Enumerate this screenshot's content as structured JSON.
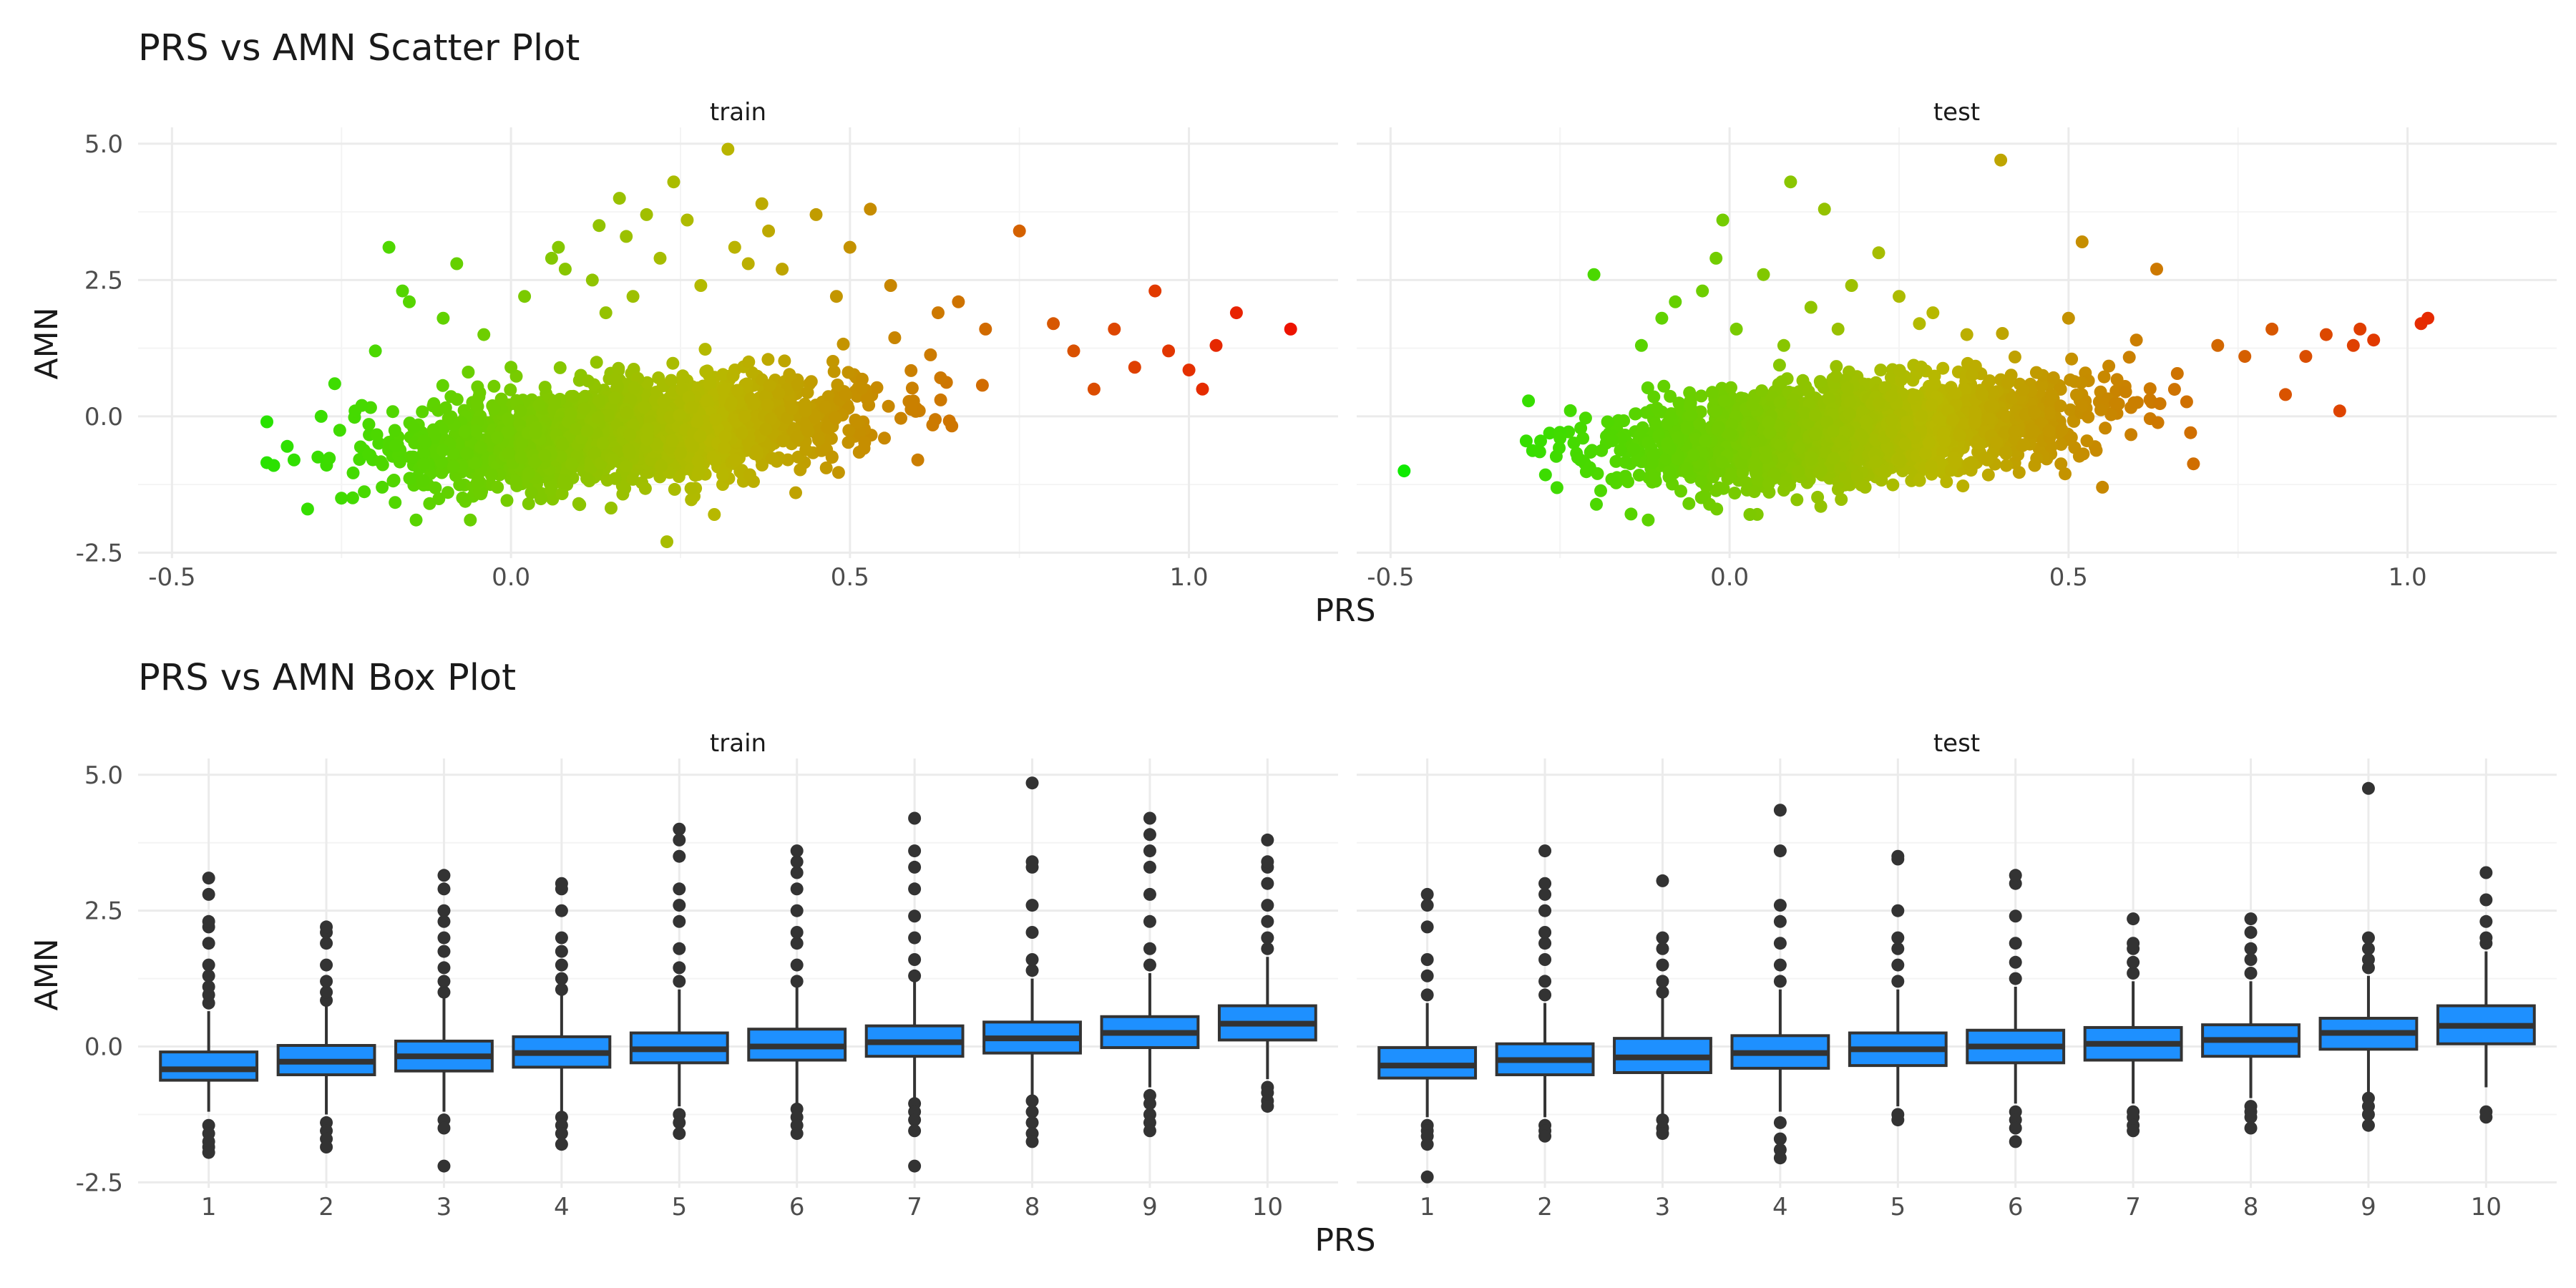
{
  "chart_data": [
    {
      "type": "scatter",
      "title": "PRS vs AMN Scatter Plot",
      "xlabel": "PRS",
      "ylabel": "AMN",
      "facets": [
        "train",
        "test"
      ],
      "xlim": [
        -0.55,
        1.22
      ],
      "ylim": [
        -2.6,
        5.3
      ],
      "x_ticks": [
        -0.5,
        0.0,
        0.5,
        1.0
      ],
      "x_tick_labels": [
        "-0.5",
        "0.0",
        "0.5",
        "1.0"
      ],
      "y_ticks": [
        -2.5,
        0.0,
        2.5,
        5.0
      ],
      "y_tick_labels": [
        "-2.5",
        "0.0",
        "2.5",
        "5.0"
      ],
      "grid": true,
      "color_scale": {
        "low": "#00ee00",
        "mid": "#b8b800",
        "high": "#ee1100",
        "encodes": "PRS"
      },
      "series": [
        {
          "facet": "train",
          "points": [
            [
              -0.36,
              -0.1
            ],
            [
              -0.36,
              -0.85
            ],
            [
              -0.35,
              -0.9
            ],
            [
              -0.33,
              -0.55
            ],
            [
              -0.32,
              -0.8
            ],
            [
              -0.3,
              -1.7
            ],
            [
              -0.28,
              0.0
            ],
            [
              -0.26,
              0.6
            ],
            [
              -0.25,
              -1.5
            ],
            [
              -0.23,
              0.1
            ],
            [
              -0.22,
              0.2
            ],
            [
              -0.2,
              1.2
            ],
            [
              -0.19,
              -1.3
            ],
            [
              -0.18,
              3.1
            ],
            [
              -0.16,
              2.3
            ],
            [
              -0.15,
              2.1
            ],
            [
              -0.14,
              -1.9
            ],
            [
              -0.12,
              -1.6
            ],
            [
              -0.1,
              1.8
            ],
            [
              -0.08,
              2.8
            ],
            [
              -0.06,
              -1.9
            ],
            [
              -0.04,
              1.5
            ],
            [
              -0.02,
              -1.3
            ],
            [
              0.0,
              0.9
            ],
            [
              0.02,
              2.2
            ],
            [
              0.03,
              -1.4
            ],
            [
              0.06,
              2.9
            ],
            [
              0.07,
              3.1
            ],
            [
              0.08,
              2.7
            ],
            [
              0.1,
              -1.6
            ],
            [
              0.12,
              2.5
            ],
            [
              0.13,
              3.5
            ],
            [
              0.14,
              1.9
            ],
            [
              0.16,
              4.0
            ],
            [
              0.17,
              3.3
            ],
            [
              0.18,
              2.2
            ],
            [
              0.2,
              3.7
            ],
            [
              0.22,
              2.9
            ],
            [
              0.23,
              -2.3
            ],
            [
              0.24,
              4.3
            ],
            [
              0.26,
              3.6
            ],
            [
              0.28,
              2.4
            ],
            [
              0.3,
              -1.8
            ],
            [
              0.32,
              4.9
            ],
            [
              0.33,
              3.1
            ],
            [
              0.35,
              2.8
            ],
            [
              0.37,
              3.9
            ],
            [
              0.38,
              3.4
            ],
            [
              0.4,
              2.7
            ],
            [
              0.42,
              -1.4
            ],
            [
              0.45,
              3.7
            ],
            [
              0.48,
              2.2
            ],
            [
              0.5,
              3.1
            ],
            [
              0.53,
              3.8
            ],
            [
              0.56,
              2.4
            ],
            [
              0.6,
              -0.8
            ],
            [
              0.63,
              1.9
            ],
            [
              0.66,
              2.1
            ],
            [
              0.7,
              1.6
            ],
            [
              0.75,
              3.4
            ],
            [
              0.8,
              1.7
            ],
            [
              0.83,
              1.2
            ],
            [
              0.86,
              0.5
            ],
            [
              0.89,
              1.6
            ],
            [
              0.92,
              0.9
            ],
            [
              0.95,
              2.3
            ],
            [
              0.97,
              1.2
            ],
            [
              1.0,
              0.85
            ],
            [
              1.02,
              0.5
            ],
            [
              1.04,
              1.3
            ],
            [
              1.07,
              1.9
            ],
            [
              1.15,
              1.6
            ]
          ]
        },
        {
          "facet": "test",
          "points": [
            [
              -0.48,
              -1.0
            ],
            [
              -0.3,
              -0.45
            ],
            [
              -0.28,
              -0.65
            ],
            [
              -0.25,
              -0.4
            ],
            [
              -0.22,
              -0.8
            ],
            [
              -0.2,
              2.6
            ],
            [
              -0.18,
              -0.1
            ],
            [
              -0.15,
              -1.2
            ],
            [
              -0.13,
              1.3
            ],
            [
              -0.12,
              -1.9
            ],
            [
              -0.1,
              1.8
            ],
            [
              -0.08,
              2.1
            ],
            [
              -0.06,
              -1.6
            ],
            [
              -0.04,
              2.3
            ],
            [
              -0.02,
              2.9
            ],
            [
              -0.01,
              3.6
            ],
            [
              0.01,
              1.6
            ],
            [
              0.03,
              -1.8
            ],
            [
              0.05,
              2.6
            ],
            [
              0.08,
              1.3
            ],
            [
              0.09,
              4.3
            ],
            [
              0.12,
              2.0
            ],
            [
              0.14,
              3.8
            ],
            [
              0.16,
              1.6
            ],
            [
              0.18,
              2.4
            ],
            [
              0.2,
              -1.3
            ],
            [
              0.22,
              3.0
            ],
            [
              0.25,
              2.2
            ],
            [
              0.28,
              1.7
            ],
            [
              0.3,
              1.9
            ],
            [
              0.32,
              -1.2
            ],
            [
              0.35,
              1.5
            ],
            [
              0.38,
              -0.8
            ],
            [
              0.4,
              4.7
            ],
            [
              0.45,
              -0.9
            ],
            [
              0.5,
              1.8
            ],
            [
              0.52,
              3.2
            ],
            [
              0.55,
              -1.3
            ],
            [
              0.6,
              1.4
            ],
            [
              0.63,
              2.7
            ],
            [
              0.68,
              -0.3
            ],
            [
              0.72,
              1.3
            ],
            [
              0.76,
              1.1
            ],
            [
              0.8,
              1.6
            ],
            [
              0.82,
              0.4
            ],
            [
              0.85,
              1.1
            ],
            [
              0.88,
              1.5
            ],
            [
              0.9,
              0.1
            ],
            [
              0.92,
              1.3
            ],
            [
              0.93,
              1.6
            ],
            [
              0.95,
              1.4
            ],
            [
              1.02,
              1.7
            ],
            [
              1.03,
              1.8
            ]
          ]
        }
      ]
    },
    {
      "type": "box",
      "title": "PRS vs AMN Box Plot",
      "xlabel": "PRS",
      "ylabel": "AMN",
      "facets": [
        "train",
        "test"
      ],
      "categories": [
        "1",
        "2",
        "3",
        "4",
        "5",
        "6",
        "7",
        "8",
        "9",
        "10"
      ],
      "ylim": [
        -2.6,
        5.3
      ],
      "y_ticks": [
        -2.5,
        0.0,
        2.5,
        5.0
      ],
      "y_tick_labels": [
        "-2.5",
        "0.0",
        "2.5",
        "5.0"
      ],
      "grid": true,
      "fill": "#1e90ff",
      "series": [
        {
          "facet": "train",
          "boxes": [
            {
              "q1": -0.62,
              "median": -0.42,
              "q3": -0.1,
              "lower": -1.2,
              "upper": 0.65,
              "outliers": [
                -1.45,
                -1.6,
                -1.75,
                -1.85,
                -1.95,
                0.8,
                0.95,
                1.1,
                1.3,
                1.5,
                1.9,
                2.2,
                2.3,
                2.8,
                3.1
              ]
            },
            {
              "q1": -0.52,
              "median": -0.28,
              "q3": 0.02,
              "lower": -1.25,
              "upper": 0.75,
              "outliers": [
                -1.4,
                -1.55,
                -1.7,
                -1.85,
                0.85,
                1.0,
                1.2,
                1.5,
                1.9,
                2.1,
                2.2
              ]
            },
            {
              "q1": -0.45,
              "median": -0.18,
              "q3": 0.1,
              "lower": -1.2,
              "upper": 0.9,
              "outliers": [
                -1.35,
                -1.5,
                -2.2,
                1.0,
                1.2,
                1.45,
                1.75,
                2.0,
                2.3,
                2.5,
                2.9,
                3.15
              ]
            },
            {
              "q1": -0.38,
              "median": -0.12,
              "q3": 0.18,
              "lower": -1.2,
              "upper": 1.0,
              "outliers": [
                -1.3,
                -1.45,
                -1.6,
                -1.8,
                1.05,
                1.25,
                1.5,
                1.75,
                2.0,
                2.5,
                2.9,
                3.0
              ]
            },
            {
              "q1": -0.3,
              "median": -0.05,
              "q3": 0.25,
              "lower": -1.1,
              "upper": 1.05,
              "outliers": [
                -1.25,
                -1.4,
                -1.6,
                1.2,
                1.45,
                1.8,
                2.3,
                2.6,
                2.9,
                3.5,
                3.8,
                4.0
              ]
            },
            {
              "q1": -0.25,
              "median": 0.0,
              "q3": 0.32,
              "lower": -1.05,
              "upper": 1.1,
              "outliers": [
                -1.15,
                -1.3,
                -1.45,
                -1.6,
                1.2,
                1.5,
                1.9,
                2.1,
                2.5,
                2.9,
                3.2,
                3.4,
                3.6
              ]
            },
            {
              "q1": -0.18,
              "median": 0.08,
              "q3": 0.38,
              "lower": -0.95,
              "upper": 1.2,
              "outliers": [
                -1.05,
                -1.2,
                -1.35,
                -1.55,
                -2.2,
                1.3,
                1.6,
                2.0,
                2.4,
                2.9,
                3.3,
                3.6,
                4.2
              ]
            },
            {
              "q1": -0.12,
              "median": 0.15,
              "q3": 0.45,
              "lower": -0.9,
              "upper": 1.25,
              "outliers": [
                -1.0,
                -1.2,
                -1.4,
                -1.6,
                -1.75,
                1.4,
                1.6,
                2.1,
                2.6,
                3.3,
                3.4,
                4.85
              ]
            },
            {
              "q1": -0.02,
              "median": 0.25,
              "q3": 0.55,
              "lower": -0.75,
              "upper": 1.35,
              "outliers": [
                -0.9,
                -1.05,
                -1.25,
                -1.4,
                -1.55,
                1.5,
                1.8,
                2.3,
                2.8,
                3.3,
                3.6,
                3.9,
                4.2
              ]
            },
            {
              "q1": 0.12,
              "median": 0.42,
              "q3": 0.75,
              "lower": -0.6,
              "upper": 1.65,
              "outliers": [
                -0.75,
                -0.85,
                -1.0,
                -1.1,
                1.8,
                2.0,
                2.3,
                2.6,
                3.0,
                3.3,
                3.4,
                3.8
              ]
            }
          ]
        },
        {
          "facet": "test",
          "boxes": [
            {
              "q1": -0.58,
              "median": -0.35,
              "q3": -0.02,
              "lower": -1.3,
              "upper": 0.8,
              "outliers": [
                -1.45,
                -1.55,
                -1.65,
                -1.8,
                -2.4,
                0.95,
                1.3,
                1.6,
                2.2,
                2.6,
                2.8
              ]
            },
            {
              "q1": -0.52,
              "median": -0.25,
              "q3": 0.05,
              "lower": -1.3,
              "upper": 0.8,
              "outliers": [
                -1.45,
                -1.55,
                -1.65,
                0.95,
                1.2,
                1.6,
                1.9,
                2.1,
                2.5,
                2.8,
                3.0,
                3.6
              ]
            },
            {
              "q1": -0.48,
              "median": -0.2,
              "q3": 0.15,
              "lower": -1.25,
              "upper": 0.9,
              "outliers": [
                -1.35,
                -1.5,
                -1.6,
                1.0,
                1.2,
                1.5,
                1.8,
                2.0,
                3.05
              ]
            },
            {
              "q1": -0.4,
              "median": -0.12,
              "q3": 0.2,
              "lower": -1.2,
              "upper": 1.05,
              "outliers": [
                -1.4,
                -1.7,
                -1.9,
                -2.05,
                1.2,
                1.5,
                1.9,
                2.3,
                2.6,
                3.6,
                4.35
              ]
            },
            {
              "q1": -0.35,
              "median": -0.05,
              "q3": 0.25,
              "lower": -1.1,
              "upper": 1.05,
              "outliers": [
                -1.25,
                -1.35,
                1.2,
                1.5,
                1.8,
                2.0,
                2.5,
                3.45,
                3.5
              ]
            },
            {
              "q1": -0.3,
              "median": 0.0,
              "q3": 0.3,
              "lower": -1.05,
              "upper": 1.1,
              "outliers": [
                -1.2,
                -1.35,
                -1.5,
                -1.75,
                1.25,
                1.55,
                1.9,
                2.4,
                3.0,
                3.15
              ]
            },
            {
              "q1": -0.25,
              "median": 0.05,
              "q3": 0.35,
              "lower": -1.05,
              "upper": 1.2,
              "outliers": [
                -1.2,
                -1.3,
                -1.45,
                -1.55,
                1.35,
                1.55,
                1.8,
                1.9,
                2.35
              ]
            },
            {
              "q1": -0.18,
              "median": 0.12,
              "q3": 0.4,
              "lower": -0.95,
              "upper": 1.2,
              "outliers": [
                -1.1,
                -1.2,
                -1.3,
                -1.5,
                1.35,
                1.6,
                1.8,
                2.1,
                2.35
              ]
            },
            {
              "q1": -0.05,
              "median": 0.25,
              "q3": 0.52,
              "lower": -0.85,
              "upper": 1.3,
              "outliers": [
                -0.95,
                -1.1,
                -1.25,
                -1.45,
                1.45,
                1.6,
                1.8,
                2.0,
                4.75
              ]
            },
            {
              "q1": 0.05,
              "median": 0.38,
              "q3": 0.75,
              "lower": -0.75,
              "upper": 1.75,
              "outliers": [
                -1.2,
                -1.3,
                1.9,
                2.0,
                2.3,
                2.7,
                3.2
              ]
            }
          ]
        }
      ]
    }
  ]
}
